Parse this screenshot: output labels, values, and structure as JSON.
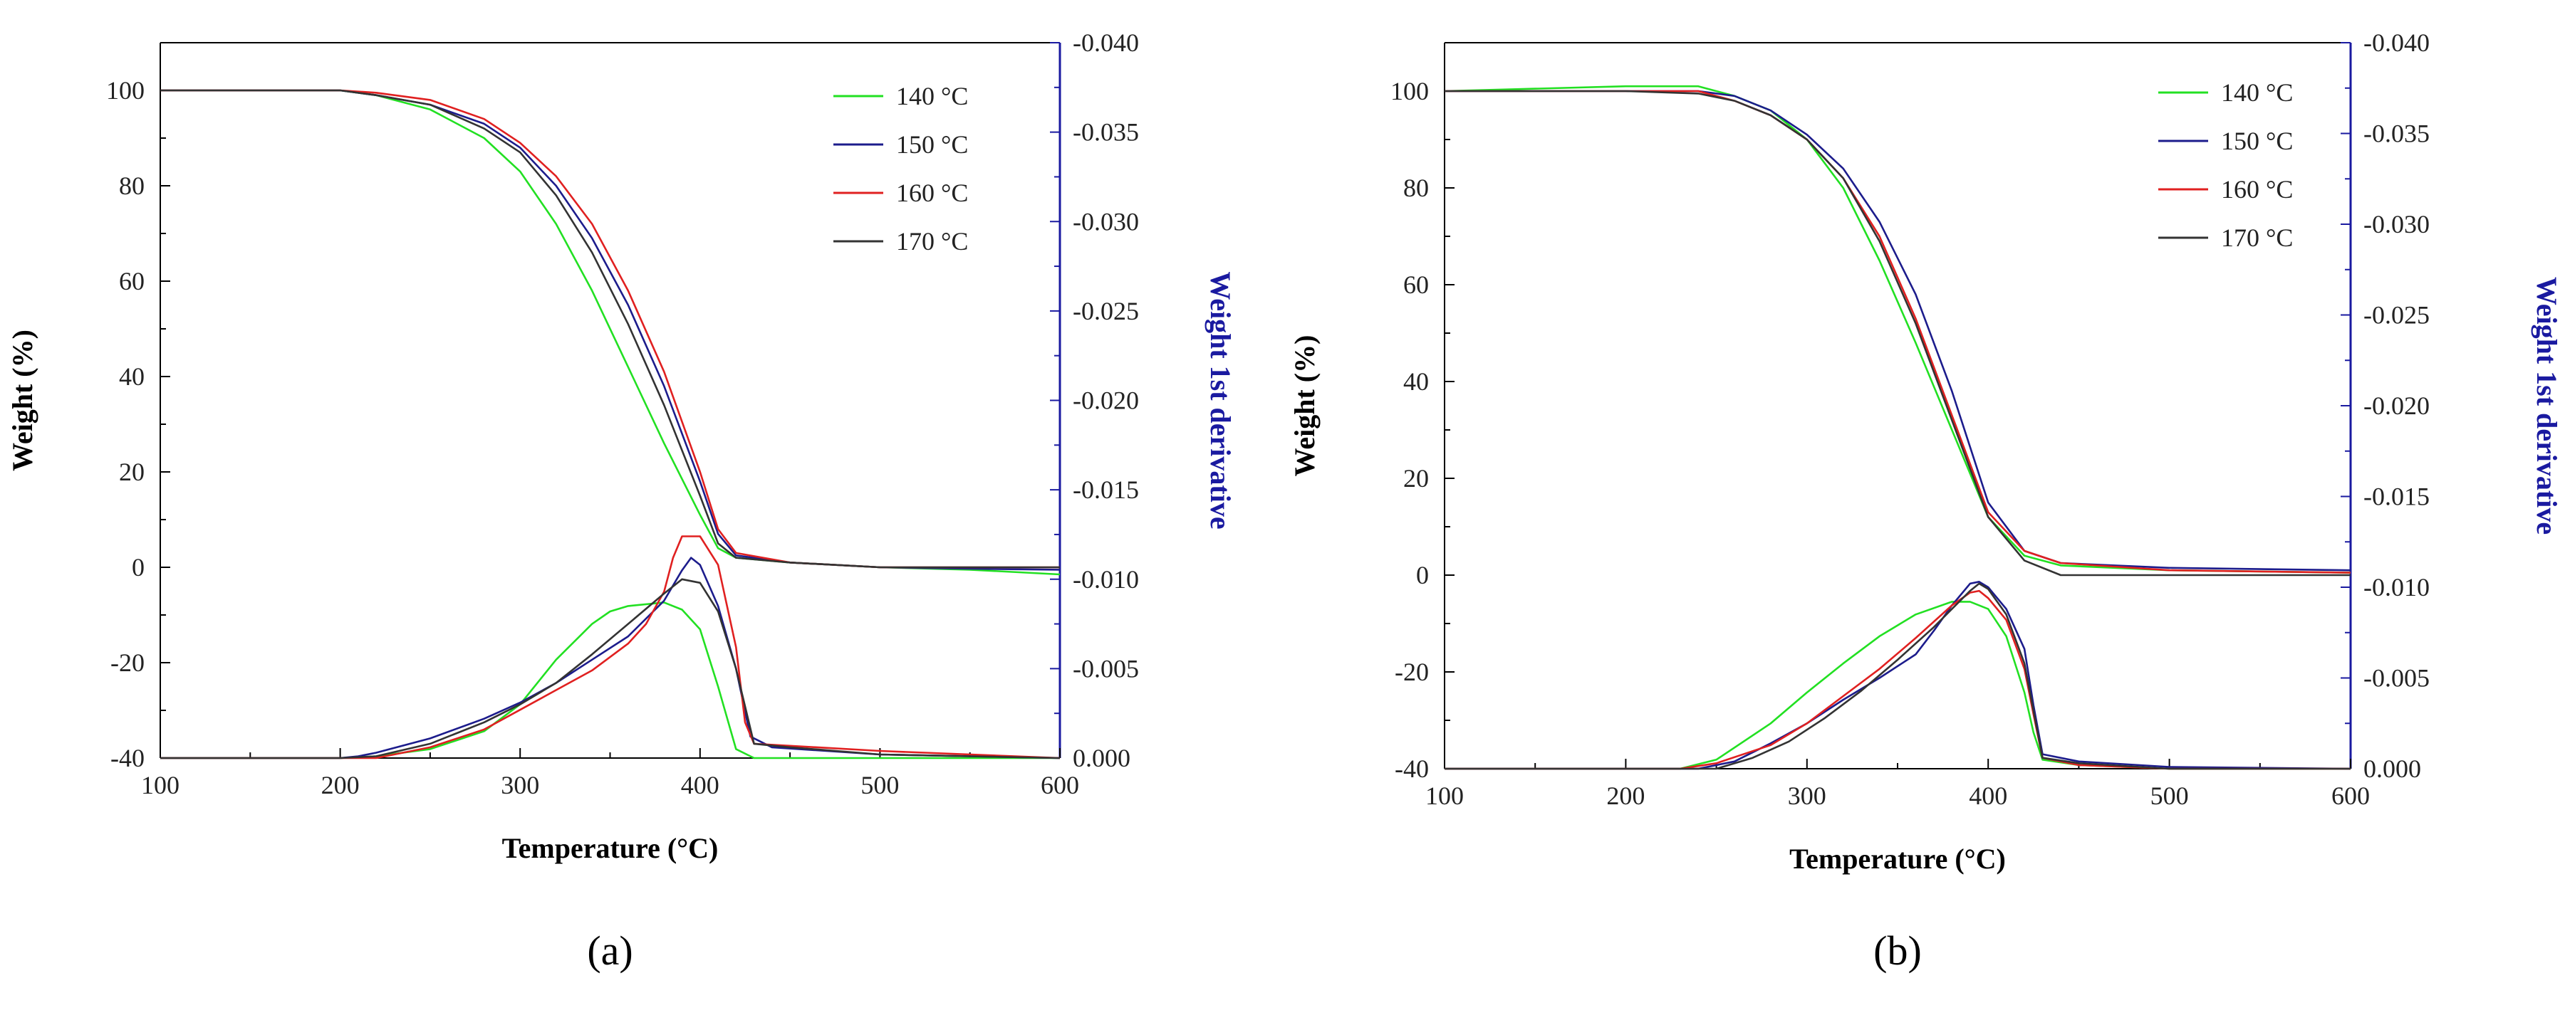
{
  "figure": {
    "colors": {
      "axis_left": "#000000",
      "axis_right": "#1a1aa0",
      "series": {
        "140 °C": "#22e022",
        "150 °C": "#1c1c8c",
        "160 °C": "#e02020",
        "170 °C": "#333333"
      }
    }
  },
  "chart_data": [
    {
      "panel_label": "(a)",
      "type": "line",
      "xlabel": "Temperature (°C)",
      "ylabel": "Weight (%)",
      "y2label": "Weight 1st derivative",
      "xlim": [
        100,
        600
      ],
      "ylim": [
        -40,
        110
      ],
      "y2lim": [
        0.0,
        -0.04
      ],
      "xticks": [
        "100",
        "200",
        "300",
        "400",
        "500",
        "600"
      ],
      "xtick_values": [
        100,
        200,
        300,
        400,
        500,
        600
      ],
      "yticks": [
        "100",
        "80",
        "60",
        "40",
        "20",
        "0",
        "-20",
        "-40"
      ],
      "ytick_values": [
        100,
        80,
        60,
        40,
        20,
        0,
        -20,
        -40
      ],
      "y2ticks": [
        "-0.040",
        "-0.035",
        "-0.030",
        "-0.025",
        "-0.020",
        "-0.015",
        "-0.010",
        "-0.005",
        "0.000"
      ],
      "y2tick_values": [
        -0.04,
        -0.035,
        -0.03,
        -0.025,
        -0.02,
        -0.015,
        -0.01,
        -0.005,
        0.0
      ],
      "legend": [
        "140 °C",
        "150 °C",
        "160 °C",
        "170 °C"
      ],
      "legend_position": "top-right",
      "series": [
        {
          "name": "140 °C",
          "axis": "left",
          "x": [
            100,
            200,
            220,
            250,
            280,
            300,
            320,
            340,
            360,
            380,
            400,
            410,
            420,
            450,
            500,
            550,
            600
          ],
          "y": [
            100,
            100,
            99,
            96,
            90,
            83,
            72,
            58,
            42,
            26,
            11,
            4,
            2,
            1,
            0,
            -0.5,
            -1.5
          ]
        },
        {
          "name": "150 °C",
          "axis": "left",
          "x": [
            100,
            200,
            220,
            250,
            280,
            300,
            320,
            340,
            360,
            380,
            400,
            410,
            420,
            450,
            500,
            550,
            600
          ],
          "y": [
            100,
            100,
            99,
            97,
            93,
            88,
            80,
            69,
            55,
            38,
            18,
            7,
            2.5,
            1,
            0,
            -0.3,
            -0.5
          ]
        },
        {
          "name": "160 °C",
          "axis": "left",
          "x": [
            100,
            200,
            220,
            250,
            280,
            300,
            320,
            340,
            360,
            380,
            400,
            410,
            420,
            450,
            500,
            550,
            600
          ],
          "y": [
            100,
            100,
            99.5,
            98,
            94,
            89,
            82,
            72,
            58,
            41,
            20,
            8,
            3,
            1,
            0,
            0,
            0
          ]
        },
        {
          "name": "170 °C",
          "axis": "left",
          "x": [
            100,
            200,
            220,
            250,
            280,
            300,
            320,
            340,
            360,
            380,
            400,
            410,
            420,
            450,
            500,
            550,
            600
          ],
          "y": [
            100,
            100,
            99,
            97,
            92,
            87,
            78,
            66,
            51,
            34,
            15,
            5,
            2,
            1,
            0,
            0,
            0
          ]
        },
        {
          "name": "140 °C",
          "axis": "right",
          "x": [
            100,
            200,
            220,
            250,
            280,
            300,
            320,
            340,
            350,
            360,
            380,
            390,
            400,
            410,
            420,
            430,
            450,
            500,
            600
          ],
          "y": [
            0,
            0,
            -0.0001,
            -0.0005,
            -0.0015,
            -0.003,
            -0.0055,
            -0.0075,
            -0.0082,
            -0.0085,
            -0.0087,
            -0.0083,
            -0.0072,
            -0.004,
            -0.0005,
            0,
            0,
            0,
            0
          ]
        },
        {
          "name": "150 °C",
          "axis": "right",
          "x": [
            100,
            200,
            210,
            220,
            250,
            280,
            300,
            320,
            340,
            360,
            380,
            390,
            395,
            400,
            410,
            420,
            428,
            440,
            500,
            600
          ],
          "y": [
            0,
            0,
            -0.0001,
            -0.0003,
            -0.0011,
            -0.0022,
            -0.0031,
            -0.0042,
            -0.0055,
            -0.0068,
            -0.0088,
            -0.0105,
            -0.0112,
            -0.0108,
            -0.0085,
            -0.005,
            -0.0012,
            -0.0006,
            -0.0002,
            0
          ]
        },
        {
          "name": "160 °C",
          "axis": "right",
          "x": [
            100,
            200,
            220,
            250,
            280,
            300,
            320,
            340,
            360,
            370,
            380,
            385,
            390,
            400,
            410,
            420,
            425,
            430,
            500,
            600
          ],
          "y": [
            0,
            0,
            0,
            -0.0006,
            -0.0016,
            -0.0027,
            -0.0038,
            -0.0049,
            -0.0064,
            -0.0075,
            -0.0093,
            -0.0112,
            -0.0124,
            -0.0124,
            -0.0108,
            -0.0062,
            -0.002,
            -0.0008,
            -0.0004,
            0
          ]
        },
        {
          "name": "170 °C",
          "axis": "right",
          "x": [
            100,
            200,
            220,
            250,
            280,
            300,
            320,
            340,
            360,
            380,
            390,
            400,
            410,
            420,
            430,
            450,
            500,
            600
          ],
          "y": [
            0,
            0,
            -0.0001,
            -0.0008,
            -0.002,
            -0.003,
            -0.0042,
            -0.0058,
            -0.0075,
            -0.0092,
            -0.01,
            -0.0098,
            -0.0082,
            -0.005,
            -0.0008,
            -0.0006,
            -0.0002,
            0
          ]
        }
      ]
    },
    {
      "panel_label": "(b)",
      "type": "line",
      "xlabel": "Temperature (°C)",
      "ylabel": "Weight (%)",
      "y2label": "Weight 1st derivative",
      "xlim": [
        100,
        600
      ],
      "ylim": [
        -40,
        110
      ],
      "y2lim": [
        0.0,
        -0.04
      ],
      "xticks": [
        "100",
        "200",
        "300",
        "400",
        "500",
        "600"
      ],
      "xtick_values": [
        100,
        200,
        300,
        400,
        500,
        600
      ],
      "yticks": [
        "100",
        "80",
        "60",
        "40",
        "20",
        "0",
        "-20",
        "-40"
      ],
      "ytick_values": [
        100,
        80,
        60,
        40,
        20,
        0,
        -20,
        -40
      ],
      "y2ticks": [
        "-0.040",
        "-0.035",
        "-0.030",
        "-0.025",
        "-0.020",
        "-0.015",
        "-0.010",
        "-0.005",
        "0.000"
      ],
      "y2tick_values": [
        -0.04,
        -0.035,
        -0.03,
        -0.025,
        -0.02,
        -0.015,
        -0.01,
        -0.005,
        0.0
      ],
      "legend": [
        "140 °C",
        "150 °C",
        "160 °C",
        "170 °C"
      ],
      "legend_position": "top-right",
      "series": [
        {
          "name": "140 °C",
          "axis": "left",
          "x": [
            100,
            200,
            240,
            260,
            280,
            300,
            320,
            340,
            360,
            380,
            400,
            420,
            440,
            500,
            600
          ],
          "y": [
            100,
            101,
            101,
            99,
            96,
            90,
            80,
            65,
            48,
            30,
            12,
            4,
            2,
            1,
            0.5
          ]
        },
        {
          "name": "150 °C",
          "axis": "left",
          "x": [
            100,
            200,
            240,
            260,
            280,
            300,
            320,
            340,
            360,
            380,
            400,
            420,
            440,
            500,
            600
          ],
          "y": [
            100,
            100,
            100,
            99,
            96,
            91,
            84,
            73,
            58,
            38,
            15,
            5,
            2.5,
            1.5,
            1
          ]
        },
        {
          "name": "160 °C",
          "axis": "left",
          "x": [
            100,
            200,
            240,
            260,
            280,
            300,
            320,
            340,
            360,
            380,
            400,
            420,
            440,
            500,
            600
          ],
          "y": [
            100,
            100,
            100,
            98,
            95,
            90,
            82,
            70,
            53,
            33,
            13,
            5,
            2.5,
            1,
            0.5
          ]
        },
        {
          "name": "170 °C",
          "axis": "left",
          "x": [
            100,
            200,
            240,
            260,
            280,
            300,
            320,
            340,
            360,
            380,
            400,
            420,
            440,
            500,
            600
          ],
          "y": [
            100,
            100,
            99.5,
            98,
            95,
            90,
            82,
            69,
            52,
            32,
            12,
            3,
            0,
            0,
            0
          ]
        },
        {
          "name": "140 °C",
          "axis": "right",
          "x": [
            100,
            230,
            250,
            280,
            300,
            320,
            340,
            360,
            380,
            390,
            400,
            410,
            420,
            425,
            430,
            450,
            500,
            600
          ],
          "y": [
            0,
            0,
            -0.0005,
            -0.0025,
            -0.0042,
            -0.0058,
            -0.0073,
            -0.0085,
            -0.0092,
            -0.0092,
            -0.0088,
            -0.0073,
            -0.0042,
            -0.002,
            -0.0005,
            -0.0002,
            0,
            0
          ]
        },
        {
          "name": "150 °C",
          "axis": "right",
          "x": [
            100,
            240,
            260,
            280,
            300,
            320,
            340,
            360,
            370,
            380,
            390,
            395,
            400,
            410,
            420,
            425,
            430,
            450,
            500,
            600
          ],
          "y": [
            0,
            0,
            -0.0004,
            -0.0014,
            -0.0025,
            -0.0038,
            -0.005,
            -0.0063,
            -0.0076,
            -0.009,
            -0.0102,
            -0.0103,
            -0.01,
            -0.0088,
            -0.0066,
            -0.0035,
            -0.0008,
            -0.0004,
            -0.0001,
            0
          ]
        },
        {
          "name": "160 °C",
          "axis": "right",
          "x": [
            100,
            230,
            250,
            280,
            300,
            320,
            340,
            360,
            380,
            390,
            395,
            400,
            410,
            420,
            425,
            430,
            450,
            500,
            600
          ],
          "y": [
            0,
            0,
            -0.0003,
            -0.0013,
            -0.0025,
            -0.004,
            -0.0055,
            -0.0072,
            -0.009,
            -0.0097,
            -0.0098,
            -0.0094,
            -0.0082,
            -0.0055,
            -0.003,
            -0.0006,
            -0.0002,
            0,
            0
          ]
        },
        {
          "name": "170 °C",
          "axis": "right",
          "x": [
            100,
            250,
            270,
            290,
            310,
            330,
            350,
            370,
            380,
            390,
            395,
            400,
            410,
            420,
            425,
            430,
            450,
            500,
            600
          ],
          "y": [
            0,
            0,
            -0.0006,
            -0.0015,
            -0.0028,
            -0.0043,
            -0.006,
            -0.0078,
            -0.0088,
            -0.0098,
            -0.0102,
            -0.0099,
            -0.0085,
            -0.0058,
            -0.0032,
            -0.0006,
            -0.0003,
            0,
            0
          ]
        }
      ]
    }
  ]
}
